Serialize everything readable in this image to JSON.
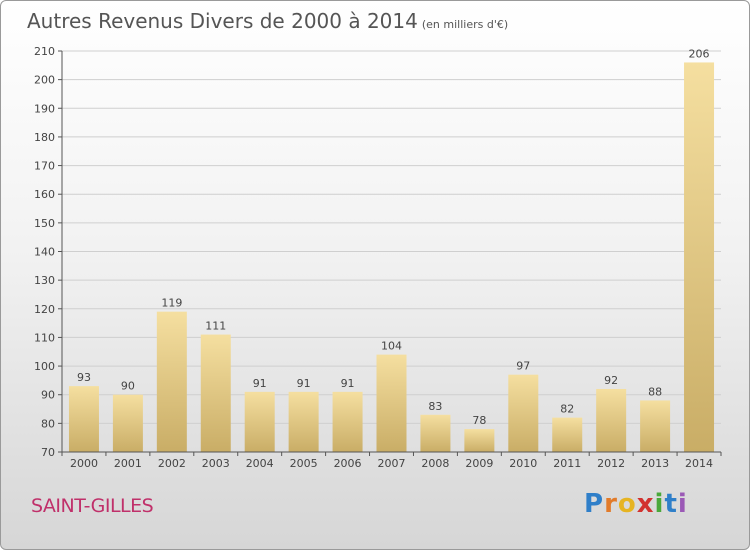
{
  "title": "Autres Revenus Divers de 2000 à 2014",
  "subtitle": "(en milliers d'€)",
  "location": "SAINT-GILLES",
  "logo": {
    "text": "Proxiti",
    "letters": [
      "P",
      "r",
      "o",
      "x",
      "i",
      "t",
      "i"
    ]
  },
  "colors": {
    "bar_light": "#f5dfa0",
    "bar_dark": "#c9ad66",
    "grid": "#cfcfcf",
    "axis": "#555555",
    "location": "#c0306a"
  },
  "chart_data": {
    "type": "bar",
    "categories": [
      "2000",
      "2001",
      "2002",
      "2003",
      "2004",
      "2005",
      "2006",
      "2007",
      "2008",
      "2009",
      "2010",
      "2011",
      "2012",
      "2013",
      "2014"
    ],
    "values": [
      93,
      90,
      119,
      111,
      91,
      91,
      91,
      104,
      83,
      78,
      97,
      82,
      92,
      88,
      206
    ],
    "ylim": [
      70,
      210
    ],
    "yticks": [
      70,
      80,
      90,
      100,
      110,
      120,
      130,
      140,
      150,
      160,
      170,
      180,
      190,
      200,
      210
    ],
    "grid": true,
    "xlabel": "",
    "ylabel": ""
  }
}
